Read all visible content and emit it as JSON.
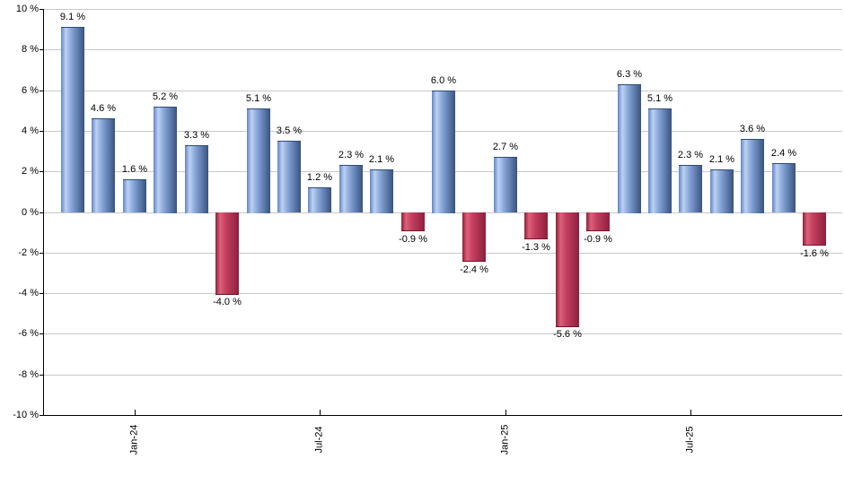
{
  "chart_data": {
    "type": "bar",
    "title": "",
    "xlabel": "",
    "ylabel": "",
    "ylim": [
      -10,
      10
    ],
    "grid": true,
    "legend": "none",
    "values": [
      9.1,
      4.6,
      1.6,
      5.2,
      3.3,
      -4.0,
      5.1,
      3.5,
      1.2,
      2.3,
      2.1,
      -0.9,
      6.0,
      -2.4,
      2.7,
      -1.3,
      -5.6,
      -0.9,
      6.3,
      5.1,
      2.3,
      2.1,
      3.6,
      2.4,
      -1.6
    ],
    "bar_labels": [
      "9.1 %",
      "4.6 %",
      "1.6 %",
      "5.2 %",
      "3.3 %",
      "-4.0 %",
      "5.1 %",
      "3.5 %",
      "1.2 %",
      "2.3 %",
      "2.1 %",
      "-0.9 %",
      "6.0 %",
      "-2.4 %",
      "2.7 %",
      "-1.3 %",
      "-5.6 %",
      "-0.9 %",
      "6.3 %",
      "5.1 %",
      "2.3 %",
      "2.1 %",
      "3.6 %",
      "2.4 %",
      "-1.6 %"
    ],
    "y_tick_labels": [
      "10 %",
      "8 %",
      "6 %",
      "4 %",
      "2 %",
      "0 %",
      "-2 %",
      "-4 %",
      "-6 %",
      "-8 %",
      "-10 %"
    ],
    "y_tick_values": [
      10,
      8,
      6,
      4,
      2,
      0,
      -2,
      -4,
      -6,
      -8,
      -10
    ],
    "x_ticks": [
      {
        "label": "Jan-24",
        "bar_index": 2
      },
      {
        "label": "Jul-24",
        "bar_index": 8
      },
      {
        "label": "Jan-25",
        "bar_index": 14
      },
      {
        "label": "Jul-25",
        "bar_index": 20
      }
    ],
    "colors": {
      "positive_gradient": [
        "#5e86c9",
        "#bed1f1",
        "#85a4d8",
        "#38537f"
      ],
      "negative_gradient": [
        "#8d2236",
        "#dd6079",
        "#c23f5e",
        "#8e1f3d"
      ],
      "gridline": "#c9c9c9",
      "axis": "#000000",
      "label_text": "#000000",
      "background": "#ffffff"
    }
  }
}
